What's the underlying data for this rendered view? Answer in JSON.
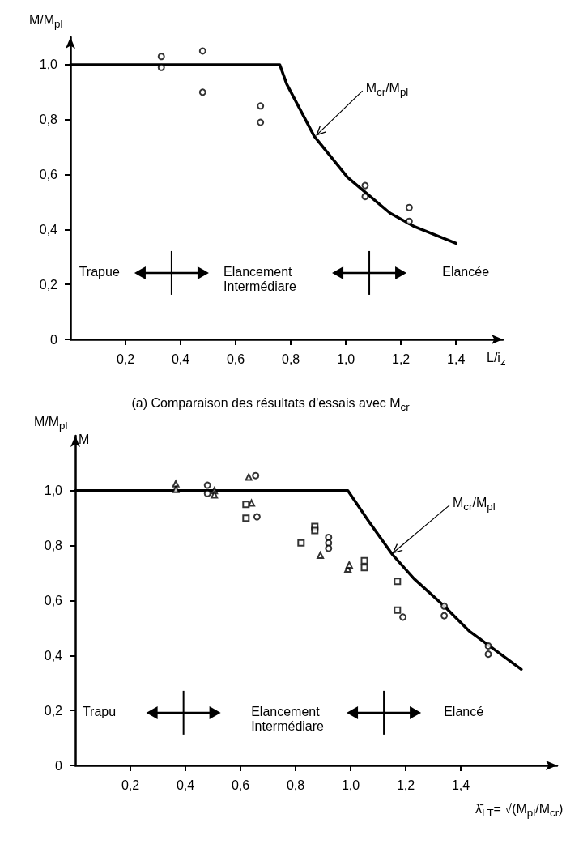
{
  "chart_data": [
    {
      "type": "scatter",
      "title": "(a)  Comparaison des résultats d'essais avec M$_{cr}$",
      "ylabel": "M/M$_{pl}$",
      "xlabel": "L/i$_{z}$",
      "xlim": [
        0,
        1.57
      ],
      "ylim": [
        0,
        1.1
      ],
      "xticks": [
        {
          "value": 0.2,
          "label": "0,2"
        },
        {
          "value": 0.4,
          "label": "0,4"
        },
        {
          "value": 0.6,
          "label": "0,6"
        },
        {
          "value": 0.8,
          "label": "0,8"
        },
        {
          "value": 1.0,
          "label": "1,0"
        },
        {
          "value": 1.2,
          "label": "1,2"
        },
        {
          "value": 1.4,
          "label": "1,4"
        }
      ],
      "yticks": [
        0,
        {
          "value": 0.2,
          "label": "0,2"
        },
        {
          "value": 0.4,
          "label": "0,4"
        },
        {
          "value": 0.6,
          "label": "0,6"
        },
        {
          "value": 0.8,
          "label": "0,8"
        },
        {
          "value": 1.0,
          "label": "1,0"
        }
      ],
      "series": [
        {
          "type": "line",
          "marker": "none",
          "color": "#000000",
          "x": [
            0,
            0.76,
            0.785,
            0.885,
            1.006,
            1.16,
            1.25,
            1.4
          ],
          "values": [
            1,
            1,
            0.93,
            0.74,
            0.59,
            0.46,
            0.41,
            0.35
          ]
        },
        {
          "marker": "circle",
          "color": "#000000",
          "x": [
            0.33,
            0.33,
            0.48,
            0.48,
            0.69,
            0.69,
            1.07,
            1.07,
            1.23,
            1.23
          ],
          "values": [
            1.03,
            0.99,
            1.05,
            0.9,
            0.85,
            0.79,
            0.56,
            0.52,
            0.48,
            0.43
          ]
        }
      ],
      "annotations": [
        {
          "text": "M$_{cr}$/M$_{pl}$",
          "x": 0.89,
          "y": 0.74
        },
        "Trapue",
        "Elancement Intermédiare",
        "Elancée"
      ]
    },
    {
      "type": "scatter",
      "ylabel": "M/M$_{pl}$",
      "xlabel": "λ̄$_{LT}$= √(M$_{pl}$/M$_{cr}$)",
      "xlim": [
        0,
        1.75
      ],
      "ylim": [
        0,
        1.2
      ],
      "xticks": [
        {
          "value": 0.2,
          "label": "0,2"
        },
        {
          "value": 0.4,
          "label": "0,4"
        },
        {
          "value": 0.6,
          "label": "0,6"
        },
        {
          "value": 0.8,
          "label": "0,8"
        },
        {
          "value": 1.0,
          "label": "1,0"
        },
        {
          "value": 1.2,
          "label": "1,2"
        },
        {
          "value": 1.4,
          "label": "1,4"
        }
      ],
      "yticks": [
        0,
        {
          "value": 0.2,
          "label": "0,2"
        },
        {
          "value": 0.4,
          "label": "0,4"
        },
        {
          "value": 0.6,
          "label": "0,6"
        },
        {
          "value": 0.8,
          "label": "0,8"
        },
        {
          "value": 1.0,
          "label": "1,0"
        }
      ],
      "series": [
        {
          "type": "line",
          "marker": "none",
          "color": "#000000",
          "x": [
            0,
            0.99,
            1.065,
            1.15,
            1.23,
            1.34,
            1.43,
            1.62
          ],
          "values": [
            1,
            1,
            0.89,
            0.77,
            0.68,
            0.58,
            0.49,
            0.35
          ]
        },
        {
          "marker": "circle",
          "color": "#000000",
          "x": [
            0.48,
            0.48,
            0.655,
            0.66,
            0.92,
            0.92,
            0.92,
            1.34,
            1.34,
            1.5,
            1.5
          ],
          "values": [
            1.02,
            0.99,
            1.055,
            0.905,
            0.83,
            0.81,
            0.79,
            0.58,
            0.545,
            0.435,
            0.405
          ]
        },
        {
          "marker": "triangle",
          "color": "#000000",
          "x": [
            0.365,
            0.365,
            0.505,
            0.505,
            0.63,
            0.64,
            0.89,
            0.99,
            0.995
          ],
          "values": [
            1.025,
            1.005,
            1.0,
            0.985,
            1.05,
            0.955,
            0.765,
            0.715,
            0.73
          ]
        },
        {
          "marker": "square",
          "color": "#000000",
          "x": [
            0.62,
            0.62,
            0.82,
            0.87,
            0.87,
            1.05,
            1.05,
            1.17,
            1.17
          ],
          "values": [
            0.95,
            0.9,
            0.81,
            0.87,
            0.855,
            0.745,
            0.72,
            0.67,
            0.565
          ]
        },
        {
          "marker": "circle",
          "color": "#000000",
          "x": [
            1.19
          ],
          "values": [
            0.54
          ]
        }
      ],
      "annotations": [
        {
          "text": "M$_{cr}$/M$_{pl}$",
          "x": 1.15,
          "y": 0.77
        },
        "M",
        "Trapu",
        "Elancement Intermédiare",
        "Elancé"
      ]
    }
  ]
}
